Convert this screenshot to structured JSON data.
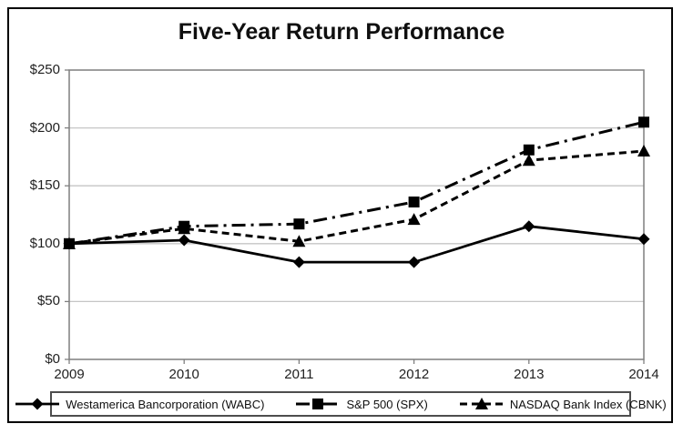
{
  "chart_data": {
    "type": "line",
    "title": "Five-Year Return Performance",
    "categories": [
      "2009",
      "2010",
      "2011",
      "2012",
      "2013",
      "2014"
    ],
    "series": [
      {
        "name": "Westamerica Bancorporation (WABC)",
        "marker": "diamond",
        "line_style": "solid",
        "color": "#000000",
        "values": [
          100,
          103,
          84,
          84,
          115,
          104
        ]
      },
      {
        "name": "S&P 500 (SPX)",
        "marker": "square",
        "line_style": "dash-dot",
        "color": "#000000",
        "values": [
          100,
          115,
          117,
          136,
          181,
          205
        ]
      },
      {
        "name": "NASDAQ Bank Index (CBNK)",
        "marker": "triangle",
        "line_style": "dashed",
        "color": "#000000",
        "values": [
          100,
          113,
          102,
          121,
          172,
          180
        ]
      }
    ],
    "ylim": [
      0,
      250
    ],
    "y_ticks": [
      0,
      50,
      100,
      150,
      200,
      250
    ],
    "y_tick_labels": [
      "$0",
      "$50",
      "$100",
      "$150",
      "$200",
      "$250"
    ],
    "x_tick_labels": [
      "2009",
      "2010",
      "2011",
      "2012",
      "2013",
      "2014"
    ],
    "grid": "horizontal",
    "legend_position": "bottom",
    "colors": {
      "gridline": "#c6c6c6",
      "axis": "#7f7f7f",
      "series": "#000000",
      "text": "#1f1f1f"
    }
  }
}
